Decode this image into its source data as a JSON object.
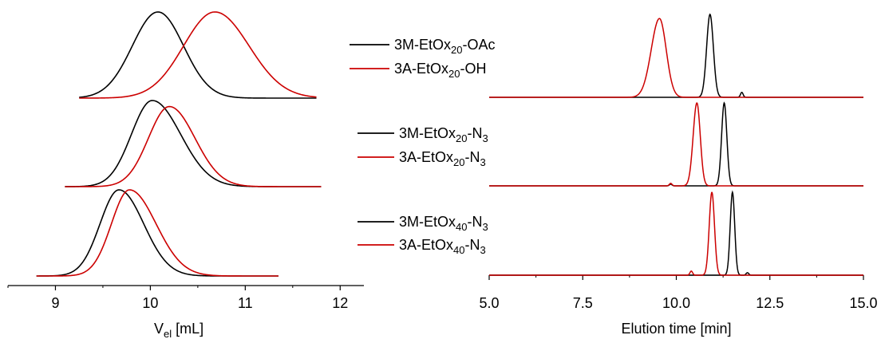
{
  "chart_data": [
    {
      "type": "line",
      "panel": "left",
      "xlabel_main": "V",
      "xlabel_sub": "el",
      "xlabel_unit": " [mL]",
      "xlim": [
        8.5,
        12.25
      ],
      "xticks": [
        9,
        10,
        11,
        12
      ],
      "tick_labels": [
        "9",
        "10",
        "11",
        "12"
      ],
      "groups": [
        {
          "series": [
            {
              "legend": [
                "3M-EtOx",
                "20",
                "-OAc"
              ],
              "color": "#000000",
              "x_range": [
                9.25,
                11.75
              ],
              "peak": 10.08,
              "width_left": 0.27,
              "width_right": 0.27,
              "height": 1.0
            },
            {
              "legend": [
                "3A-EtOx",
                "20",
                "-OH"
              ],
              "color": "#cc0000",
              "x_range": [
                9.25,
                11.75
              ],
              "peak": 10.68,
              "width_left": 0.33,
              "width_right": 0.36,
              "height": 1.0
            }
          ]
        },
        {
          "series": [
            {
              "legend": [
                "3M-EtOx",
                "20",
                "-N",
                "3"
              ],
              "color": "#000000",
              "x_range": [
                9.1,
                11.8
              ],
              "peak": 10.02,
              "width_left": 0.22,
              "width_right": 0.3,
              "height": 1.0
            },
            {
              "legend": [
                "3A-EtOx",
                "20",
                "-N",
                "3"
              ],
              "color": "#cc0000",
              "x_range": [
                9.1,
                11.8
              ],
              "peak": 10.2,
              "width_left": 0.22,
              "width_right": 0.27,
              "height": 0.93
            }
          ]
        },
        {
          "series": [
            {
              "legend": [
                "3M-EtOx",
                "40",
                "-N",
                "3"
              ],
              "color": "#000000",
              "x_range": [
                8.8,
                11.35
              ],
              "peak": 9.67,
              "width_left": 0.2,
              "width_right": 0.26,
              "height": 1.0
            },
            {
              "legend": [
                "3A-EtOx",
                "40",
                "-N",
                "3"
              ],
              "color": "#cc0000",
              "x_range": [
                8.8,
                11.35
              ],
              "peak": 9.78,
              "width_left": 0.19,
              "width_right": 0.28,
              "height": 1.0
            }
          ]
        }
      ]
    },
    {
      "type": "line",
      "panel": "right",
      "xlabel": "Elution time [min]",
      "xlim": [
        5.0,
        15.0
      ],
      "xticks": [
        5.0,
        7.5,
        10.0,
        12.5,
        15.0
      ],
      "tick_labels": [
        "5.0",
        "7.5",
        "10.0",
        "12.5",
        "15.0"
      ],
      "groups": [
        {
          "series": [
            {
              "color": "#000000",
              "peak": 10.9,
              "width_left": 0.09,
              "width_right": 0.09,
              "height": 1.0,
              "minor_peak": 11.75,
              "minor_height": 0.06
            },
            {
              "color": "#cc0000",
              "peak": 9.55,
              "width_left": 0.22,
              "width_right": 0.18,
              "height": 0.95
            }
          ]
        },
        {
          "series": [
            {
              "color": "#000000",
              "peak": 11.28,
              "width_left": 0.07,
              "width_right": 0.07,
              "height": 1.0,
              "minor_peak": 9.85,
              "minor_height": 0.02
            },
            {
              "color": "#cc0000",
              "peak": 10.55,
              "width_left": 0.1,
              "width_right": 0.09,
              "height": 1.0,
              "minor_peak": 9.85,
              "minor_height": 0.03
            }
          ]
        },
        {
          "series": [
            {
              "color": "#000000",
              "peak": 11.5,
              "width_left": 0.06,
              "width_right": 0.06,
              "height": 1.0,
              "minor_peak": 11.9,
              "minor_height": 0.03
            },
            {
              "color": "#cc0000",
              "peak": 10.95,
              "width_left": 0.07,
              "width_right": 0.07,
              "height": 1.0,
              "minor_peak": 10.4,
              "minor_height": 0.05
            }
          ]
        }
      ]
    }
  ]
}
